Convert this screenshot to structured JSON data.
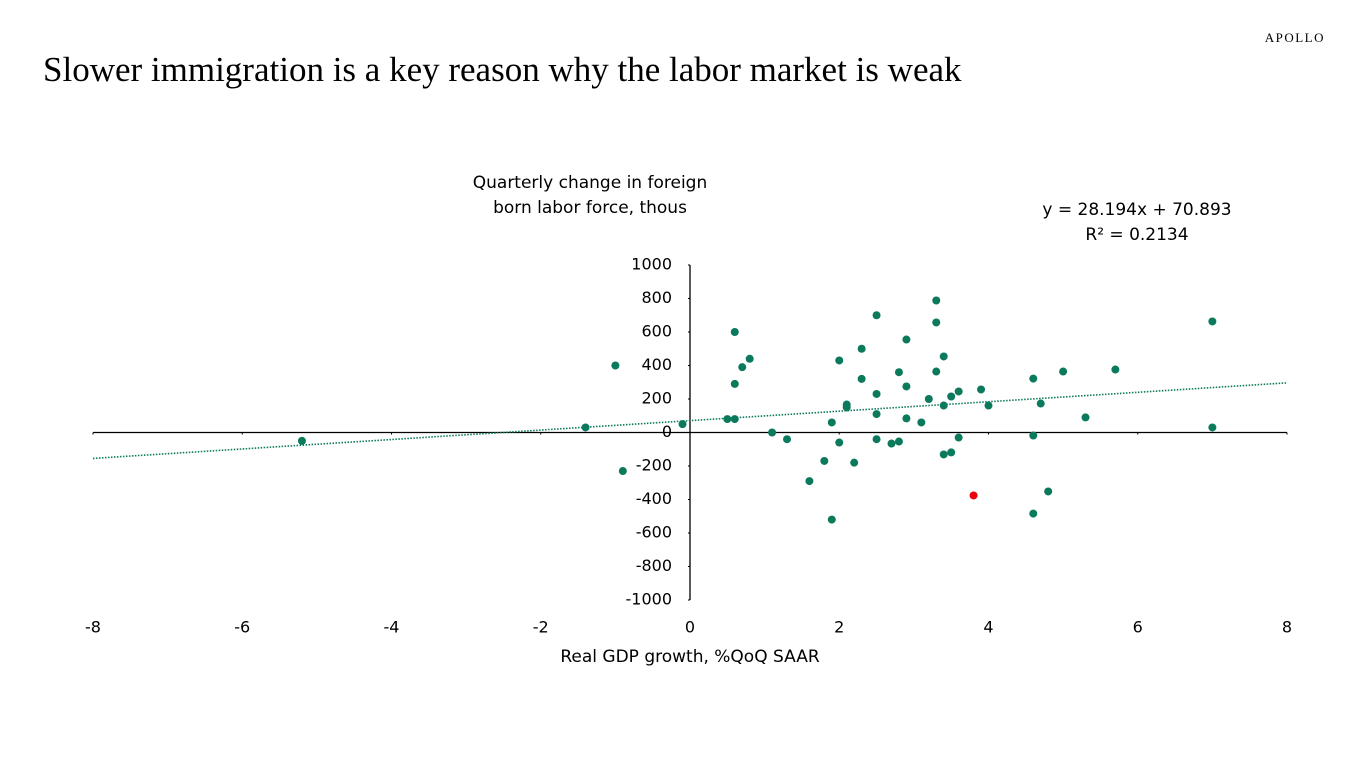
{
  "brand": "APOLLO",
  "title": "Slower immigration is a key reason why the labor market is weak",
  "chart_data": {
    "type": "scatter",
    "y_label_lines": [
      "Quarterly change in foreign",
      "born labor force, thous"
    ],
    "x_label": "Real GDP growth, %QoQ SAAR",
    "x": [
      -5.2,
      -1.4,
      -1.0,
      -0.9,
      -0.1,
      0.5,
      0.6,
      0.6,
      0.6,
      0.7,
      0.8,
      1.1,
      1.3,
      1.6,
      1.8,
      1.9,
      1.9,
      2.0,
      2.0,
      2.1,
      2.1,
      2.2,
      2.3,
      2.3,
      2.5,
      2.5,
      2.5,
      2.5,
      2.7,
      2.8,
      2.8,
      2.9,
      2.9,
      2.9,
      3.1,
      3.2,
      3.3,
      3.3,
      3.3,
      3.4,
      3.4,
      3.4,
      3.5,
      3.5,
      3.6,
      3.6,
      3.8,
      3.9,
      4.0,
      4.6,
      4.6,
      4.6,
      4.7,
      4.8,
      5.0,
      5.3,
      5.7,
      7.0,
      7.0
    ],
    "values": [
      -50,
      30,
      400,
      -230,
      50,
      80,
      80,
      600,
      290,
      390,
      440,
      0,
      -40,
      -290,
      -170,
      60,
      -520,
      430,
      -60,
      167,
      150,
      -180,
      500,
      320,
      700,
      230,
      110,
      -40,
      -66,
      360,
      -54,
      555,
      275,
      84,
      60,
      200,
      788,
      657,
      364,
      161,
      454,
      -131,
      -119,
      215,
      245,
      -30,
      -376,
      257,
      161,
      322,
      -18,
      -484,
      173,
      -352,
      364,
      90,
      376,
      663,
      30
    ],
    "point_colors": [
      "#0b7a5c",
      "#0b7a5c",
      "#0b7a5c",
      "#0b7a5c",
      "#0b7a5c",
      "#0b7a5c",
      "#0b7a5c",
      "#0b7a5c",
      "#0b7a5c",
      "#0b7a5c",
      "#0b7a5c",
      "#0b7a5c",
      "#0b7a5c",
      "#0b7a5c",
      "#0b7a5c",
      "#0b7a5c",
      "#0b7a5c",
      "#0b7a5c",
      "#0b7a5c",
      "#0b7a5c",
      "#0b7a5c",
      "#0b7a5c",
      "#0b7a5c",
      "#0b7a5c",
      "#0b7a5c",
      "#0b7a5c",
      "#0b7a5c",
      "#0b7a5c",
      "#0b7a5c",
      "#0b7a5c",
      "#0b7a5c",
      "#0b7a5c",
      "#0b7a5c",
      "#0b7a5c",
      "#0b7a5c",
      "#0b7a5c",
      "#0b7a5c",
      "#0b7a5c",
      "#0b7a5c",
      "#0b7a5c",
      "#0b7a5c",
      "#0b7a5c",
      "#0b7a5c",
      "#0b7a5c",
      "#0b7a5c",
      "#0b7a5c",
      "#e8000b",
      "#0b7a5c",
      "#0b7a5c",
      "#0b7a5c",
      "#0b7a5c",
      "#0b7a5c",
      "#0b7a5c",
      "#0b7a5c",
      "#0b7a5c",
      "#0b7a5c",
      "#0b7a5c",
      "#0b7a5c",
      "#0b7a5c"
    ],
    "xlim": [
      -8,
      8
    ],
    "xticks": [
      -8,
      -6,
      -4,
      -2,
      0,
      2,
      4,
      6,
      8
    ],
    "ylim": [
      -1000,
      1000
    ],
    "yticks": [
      -1000,
      -800,
      -600,
      -400,
      -200,
      0,
      200,
      400,
      600,
      800,
      1000
    ],
    "trendline": {
      "equation": "y = 28.194x + 70.893",
      "r_squared_label": "R² = 0.2134",
      "slope": 28.194,
      "intercept": 70.893,
      "color": "#0b7a5c"
    }
  }
}
